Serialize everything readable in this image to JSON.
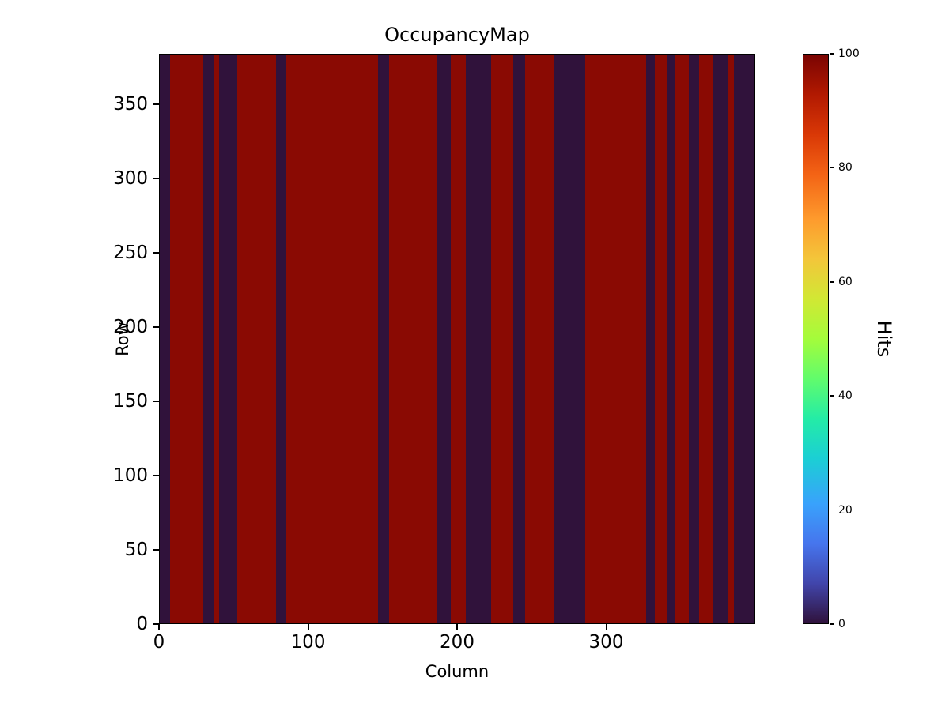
{
  "title": "OccupancyMap",
  "chart_data": {
    "type": "heatmap",
    "title": "OccupancyMap",
    "xlabel": "Column",
    "ylabel": "Row",
    "colorbar_label": "Hits",
    "xlim": [
      0,
      400
    ],
    "ylim": [
      0,
      384
    ],
    "x_ticks": [
      0,
      100,
      200,
      300
    ],
    "y_ticks": [
      0,
      50,
      100,
      150,
      200,
      250,
      300,
      350
    ],
    "colorbar_ticks": [
      0,
      20,
      40,
      60,
      80,
      100
    ],
    "colorbar_range": [
      0,
      100
    ],
    "grid": false,
    "legend": "colorbar-right",
    "colormap": "turbo",
    "colormap_stops": [
      [
        0,
        "#30123b"
      ],
      [
        7,
        "#4145ab"
      ],
      [
        14,
        "#4675ed"
      ],
      [
        21,
        "#39a2fc"
      ],
      [
        29,
        "#1bcfd4"
      ],
      [
        36,
        "#24eca6"
      ],
      [
        43,
        "#61fc6c"
      ],
      [
        50,
        "#a4fc3b"
      ],
      [
        57,
        "#d1e834"
      ],
      [
        64,
        "#f3c63a"
      ],
      [
        71,
        "#fe9b2d"
      ],
      [
        79,
        "#f36315"
      ],
      [
        86,
        "#d93806"
      ],
      [
        93,
        "#b11901"
      ],
      [
        100,
        "#7a0402"
      ]
    ],
    "occupied_value": 100,
    "dead_value": 0,
    "occupied_color": "#8a0a03",
    "dead_color": "#30123b",
    "dead_column_ranges": [
      [
        0,
        7
      ],
      [
        29,
        36
      ],
      [
        40,
        52
      ],
      [
        78,
        85
      ],
      [
        147,
        154
      ],
      [
        186,
        196
      ],
      [
        206,
        223
      ],
      [
        238,
        246
      ],
      [
        265,
        286
      ],
      [
        327,
        333
      ],
      [
        341,
        347
      ],
      [
        356,
        363
      ],
      [
        372,
        382
      ],
      [
        386,
        400
      ]
    ]
  }
}
